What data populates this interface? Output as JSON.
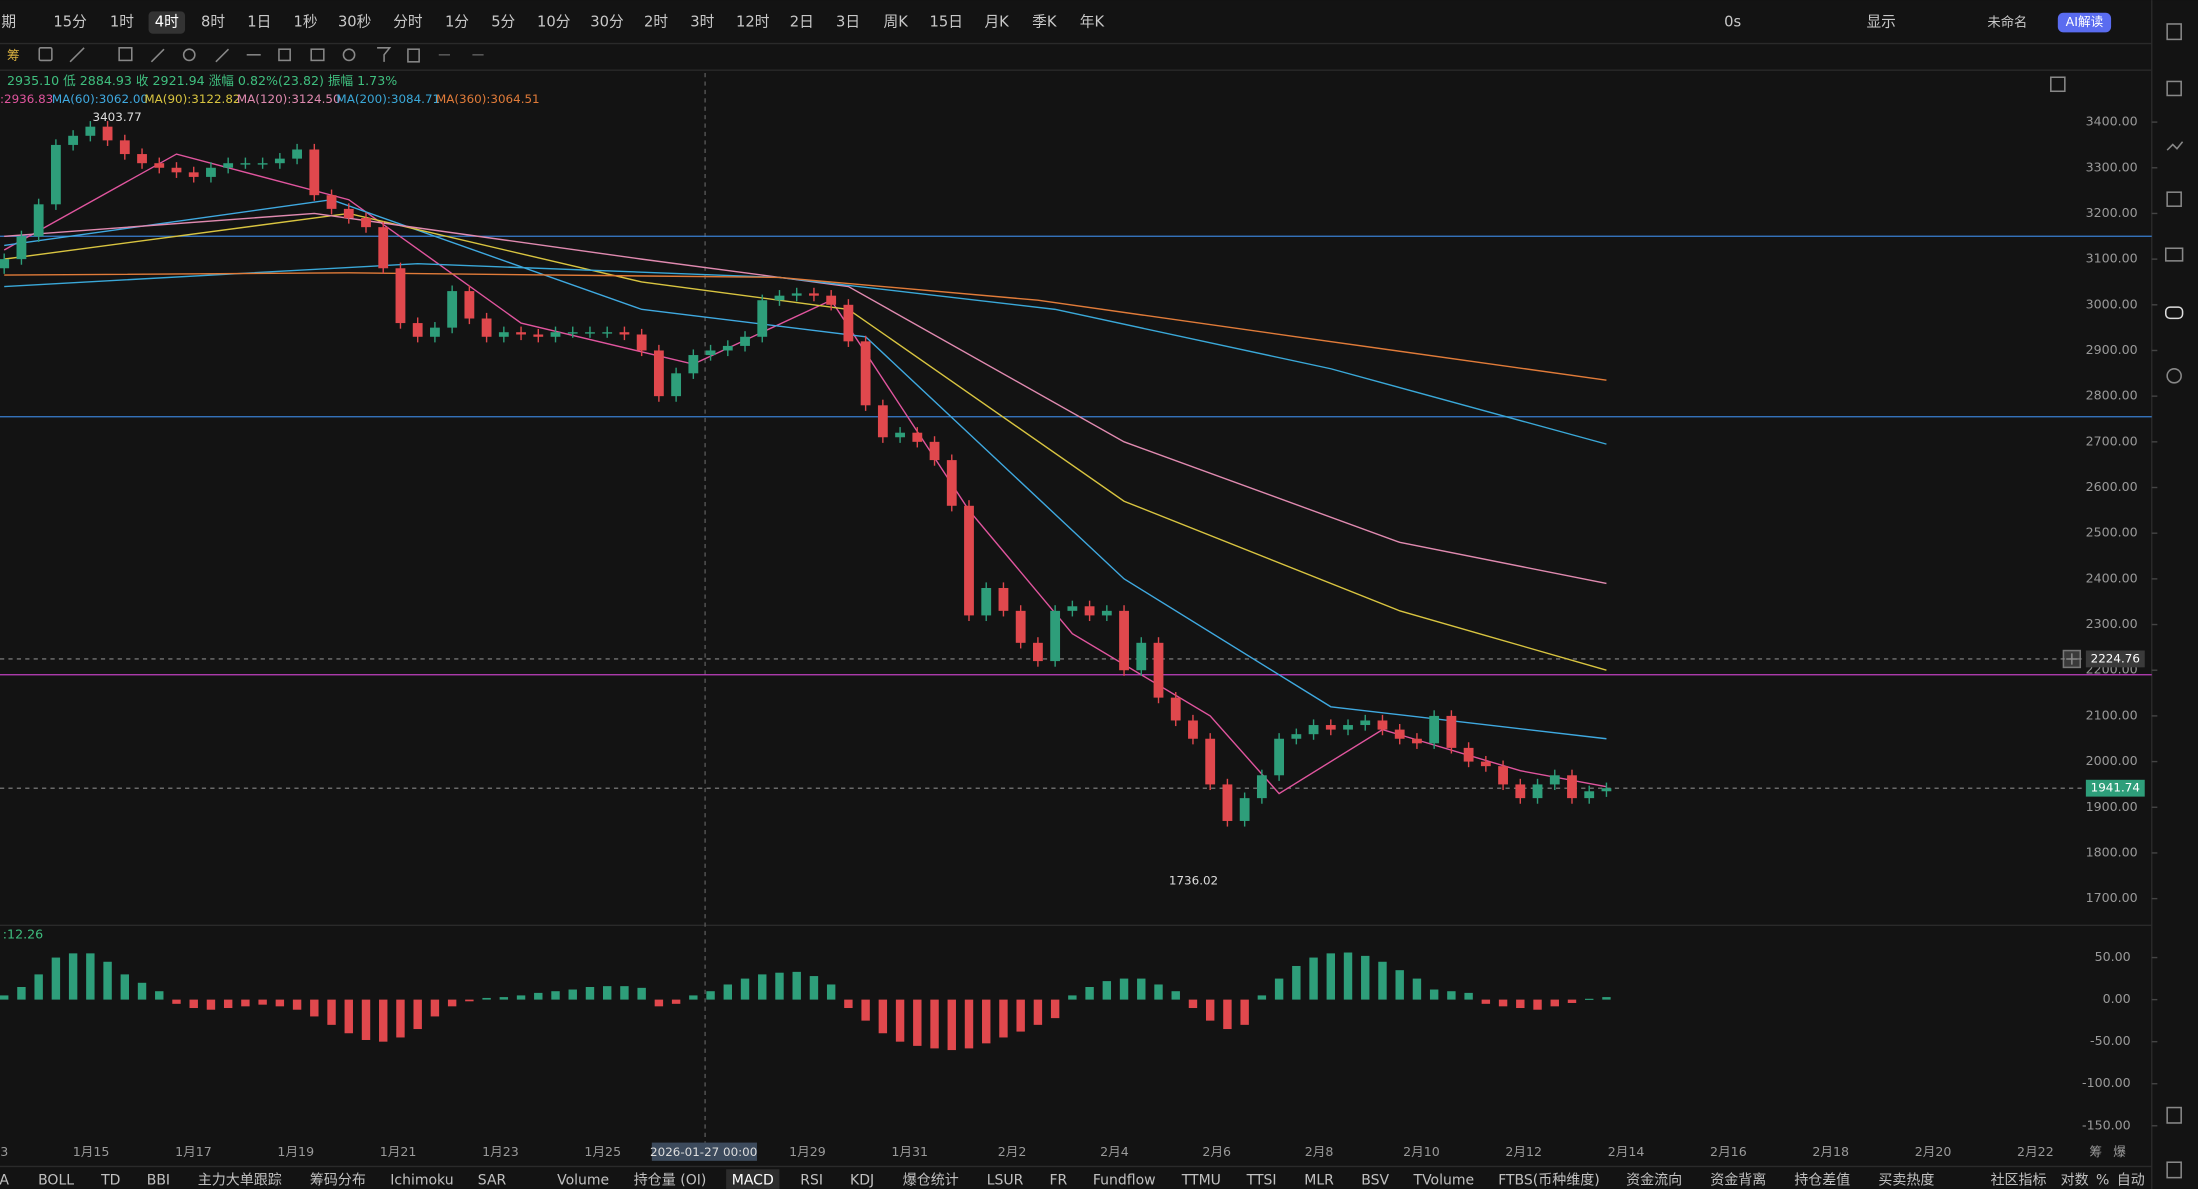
{
  "toolbar": {
    "period_label": "期",
    "periods": [
      "15分",
      "1时",
      "4时",
      "8时",
      "1日",
      "1秒",
      "30秒",
      "分时",
      "1分",
      "5分",
      "10分",
      "30分",
      "2时",
      "3时",
      "12时",
      "2日",
      "3日",
      "周K",
      "15日",
      "月K",
      "季K",
      "年K"
    ],
    "selected": "4时",
    "right": [
      "0s",
      "显示",
      "未命名",
      "AI解读"
    ]
  },
  "side_label": "筹",
  "info": "2935.10 低 2884.93 收 2921.94 涨幅 0.82%(23.82) 振幅 1.73%",
  "chart_data": [
    {
      "type": "candlestick",
      "first_open": 3080,
      "closes": [
        3100,
        3150,
        3220,
        3350,
        3370,
        3390,
        3360,
        3330,
        3310,
        3300,
        3290,
        3280,
        3300,
        3310,
        3310,
        3310,
        3320,
        3340,
        3240,
        3210,
        3190,
        3170,
        3080,
        2960,
        2930,
        2950,
        3030,
        2970,
        2930,
        2940,
        2935,
        2930,
        2940,
        2940,
        2940,
        2940,
        2935,
        2900,
        2800,
        2850,
        2890,
        2900,
        2910,
        2930,
        3010,
        3020,
        3025,
        3020,
        3000,
        2920,
        2780,
        2710,
        2720,
        2700,
        2660,
        2560,
        2320,
        2380,
        2330,
        2260,
        2220,
        2330,
        2340,
        2320,
        2330,
        2200,
        2260,
        2140,
        2090,
        2050,
        1950,
        1870,
        1920,
        1970,
        2050,
        2060,
        2080,
        2070,
        2080,
        2090,
        2070,
        2050,
        2040,
        2100,
        2030,
        2000,
        1990,
        1950,
        1920,
        1950,
        1970,
        1920,
        1935,
        1941.74
      ],
      "up_color": "#2e9e7a",
      "down_color": "#e0484d",
      "ylim": [
        1640,
        3510
      ],
      "yticks": [
        {
          "value": 3400,
          "label": "3400.00"
        },
        {
          "value": 3300,
          "label": "3300.00"
        },
        {
          "value": 3200,
          "label": "3200.00"
        },
        {
          "value": 3100,
          "label": "3100.00"
        },
        {
          "value": 3000,
          "label": "3000.00"
        },
        {
          "value": 2900,
          "label": "2900.00"
        },
        {
          "value": 2800,
          "label": "2800.00"
        },
        {
          "value": 2700,
          "label": "2700.00"
        },
        {
          "value": 2600,
          "label": "2600.00"
        },
        {
          "value": 2500,
          "label": "2500.00"
        },
        {
          "value": 2400,
          "label": "2400.00"
        },
        {
          "value": 2300,
          "label": "2300.00"
        },
        {
          "value": 2200,
          "label": "2200.00"
        },
        {
          "value": 2100,
          "label": "2100.00"
        },
        {
          "value": 2000,
          "label": "2000.00"
        },
        {
          "value": 1900,
          "label": "1900.00"
        },
        {
          "value": 1800,
          "label": "1800.00"
        },
        {
          "value": 1700,
          "label": "1700.00"
        }
      ],
      "ma_lines": [
        {
          "label": ":2936.83",
          "color": "#e0559e",
          "x": [
            0,
            10,
            20,
            30,
            40,
            48,
            56,
            62,
            70,
            74,
            80,
            88,
            93
          ],
          "values": [
            3120,
            3330,
            3230,
            2960,
            2870,
            3010,
            2550,
            2280,
            2100,
            1930,
            2070,
            1980,
            1945
          ]
        },
        {
          "label": "MA(60):3062.00",
          "color": "#3fa9e0",
          "x": [
            0,
            19,
            37,
            50,
            65,
            77,
            93
          ],
          "values": [
            3130,
            3230,
            2990,
            2930,
            2400,
            2120,
            2050
          ]
        },
        {
          "label": "MA(90):3122.82",
          "color": "#d8c440",
          "x": [
            0,
            20,
            37,
            49,
            65,
            81,
            93
          ],
          "values": [
            3100,
            3200,
            3050,
            2990,
            2570,
            2330,
            2200
          ]
        },
        {
          "label": "MA(120):3124.50",
          "color": "#e08ab0",
          "x": [
            0,
            18,
            37,
            49,
            65,
            81,
            93
          ],
          "values": [
            3150,
            3200,
            3100,
            3040,
            2700,
            2480,
            2390
          ]
        },
        {
          "label": "MA(200):3084.71",
          "color": "#3aa8d8",
          "x": [
            0,
            24,
            45,
            61,
            77,
            93
          ],
          "values": [
            3040,
            3090,
            3060,
            2990,
            2860,
            2695
          ]
        },
        {
          "label": "MA(360):3064.51",
          "color": "#e07b39",
          "x": [
            0,
            20,
            45,
            60,
            75,
            93
          ],
          "values": [
            3065,
            3070,
            3060,
            3010,
            2930,
            2835
          ]
        }
      ],
      "hlines": [
        {
          "value": 3150,
          "color": "#3a7fd0"
        },
        {
          "value": 2755,
          "color": "#3a7fd0"
        },
        {
          "value": 2190,
          "color": "#c040c0"
        }
      ],
      "price_tags": [
        {
          "value": 2224.76,
          "label": "2224.76",
          "color": "#3a3a3a"
        },
        {
          "value": 1941.74,
          "label": "1941.74",
          "color": "#2e9e7a"
        }
      ],
      "high_label": {
        "value": 3403.77,
        "label": "3403.77"
      },
      "low_label": {
        "value": 1736.02,
        "label": "1736.02"
      },
      "x_labels": [
        "3",
        "1月15",
        "1月17",
        "1月19",
        "1月21",
        "1月23",
        "1月25",
        null,
        "1月29",
        "1月31",
        "2月2",
        "2月4",
        "2月6",
        "2月8",
        "2月10",
        "2月12",
        "2月14",
        "2月16",
        "2月18",
        "2月20",
        "2月22"
      ],
      "crosshair_label": "2026-01-27 00:00"
    },
    {
      "type": "bar",
      "title": ":12.26",
      "values": [
        5,
        15,
        30,
        50,
        55,
        55,
        45,
        30,
        20,
        10,
        -5,
        -10,
        -12,
        -10,
        -8,
        -6,
        -8,
        -12,
        -20,
        -30,
        -40,
        -48,
        -50,
        -45,
        -35,
        -20,
        -8,
        -2,
        2,
        3,
        5,
        8,
        10,
        12,
        15,
        16,
        16,
        14,
        -8,
        -5,
        5,
        10,
        18,
        25,
        30,
        32,
        33,
        28,
        18,
        -10,
        -25,
        -40,
        -50,
        -55,
        -58,
        -60,
        -58,
        -52,
        -45,
        -38,
        -30,
        -22,
        5,
        15,
        22,
        25,
        25,
        18,
        10,
        -10,
        -25,
        -35,
        -30,
        5,
        25,
        40,
        50,
        55,
        56,
        52,
        45,
        35,
        25,
        12,
        10,
        8,
        -5,
        -8,
        -10,
        -12,
        -8,
        -4,
        1,
        3
      ],
      "up_color": "#2e9e7a",
      "down_color": "#e0484d",
      "ylim": [
        -170,
        80
      ],
      "yticks": [
        {
          "value": 50,
          "label": "50.00"
        },
        {
          "value": 0,
          "label": "0.00"
        },
        {
          "value": -50,
          "label": "-50.00"
        },
        {
          "value": -100,
          "label": "-100.00"
        },
        {
          "value": -150,
          "label": "-150.00"
        }
      ]
    }
  ],
  "bottom_right": [
    "筹",
    "爆"
  ],
  "indicator_tabs": [
    "A",
    "BOLL",
    "TD",
    "BBI",
    "主力大单跟踪",
    "筹码分布",
    "Ichimoku",
    "SAR",
    "Volume",
    "持仓量 (OI)",
    "MACD",
    "RSI",
    "KDJ",
    "爆仓统计",
    "LSUR",
    "FR",
    "Fundflow",
    "TTMU",
    "TTSI",
    "MLR",
    "BSV",
    "TVolume",
    "FTBS(币种维度)",
    "资金流向",
    "资金背离",
    "持仓差值",
    "买卖热度",
    "社区指标",
    "对数",
    "%",
    "自动"
  ],
  "selected_tab": "MACD"
}
